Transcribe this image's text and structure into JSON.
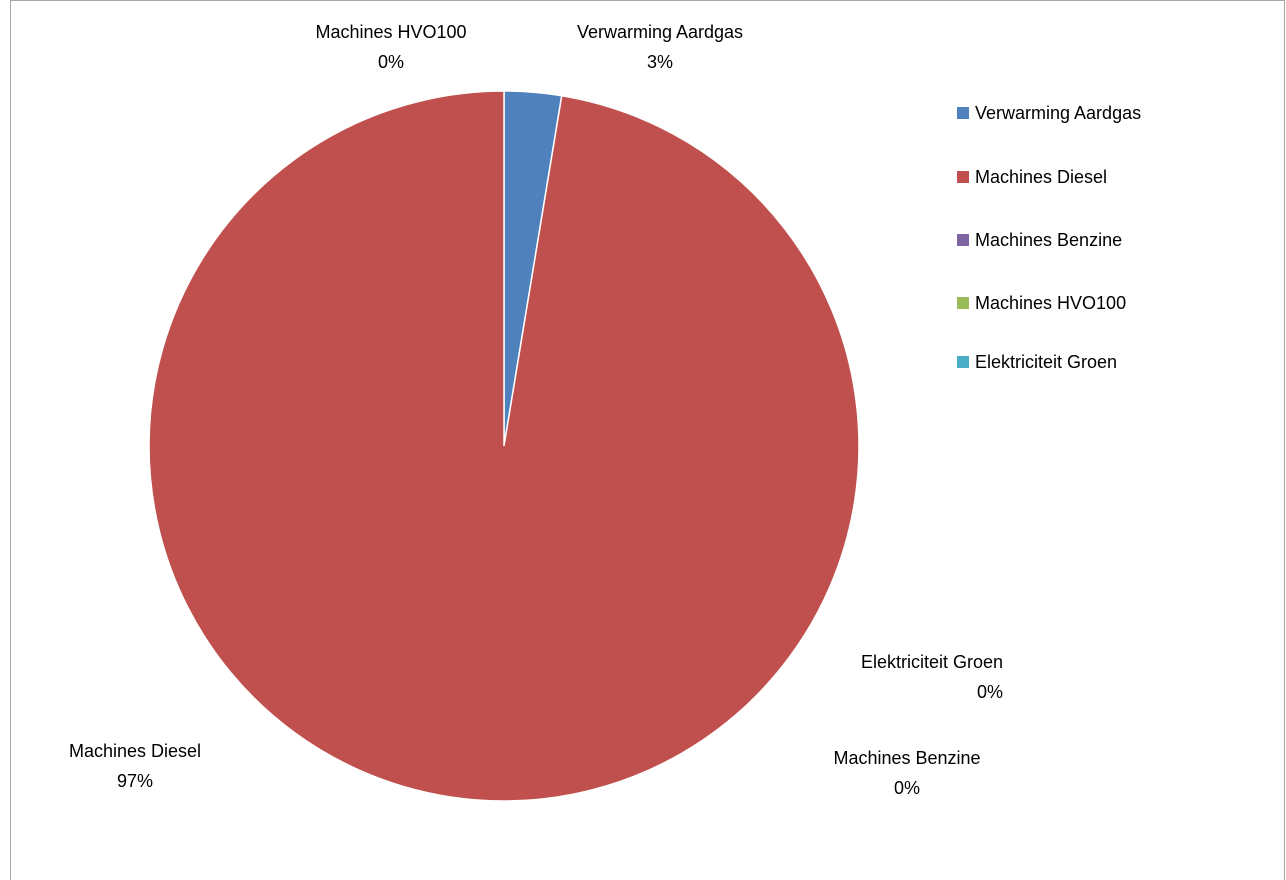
{
  "chart_data": {
    "type": "pie",
    "title": "",
    "legend_position": "right",
    "slices": [
      {
        "label": "Verwarming Aardgas",
        "value": 2.6,
        "percent_label": "3%",
        "color": "#4f81bd"
      },
      {
        "label": "Machines Diesel",
        "value": 97.4,
        "percent_label": "97%",
        "color": "#c0504d"
      },
      {
        "label": "Machines Benzine",
        "value": 0,
        "percent_label": "0%",
        "color": "#8064a2"
      },
      {
        "label": "Machines HVO100",
        "value": 0,
        "percent_label": "0%",
        "color": "#9bbb59"
      },
      {
        "label": "Elektriciteit Groen",
        "value": 0,
        "percent_label": "0%",
        "color": "#4bacc6"
      }
    ]
  }
}
